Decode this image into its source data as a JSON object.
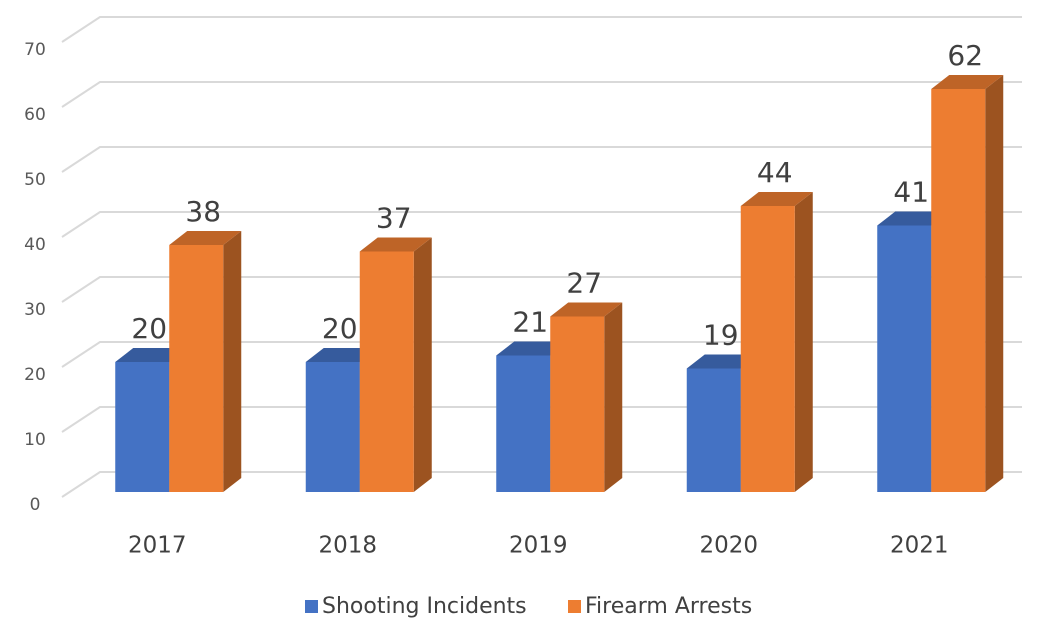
{
  "chart_data": {
    "type": "bar3d",
    "categories": [
      "2017",
      "2018",
      "2019",
      "2020",
      "2021"
    ],
    "series": [
      {
        "name": "Shooting Incidents",
        "color": "#4472c4",
        "values": [
          20,
          20,
          21,
          19,
          41
        ]
      },
      {
        "name": "Firearm Arrests",
        "color": "#ed7d31",
        "values": [
          38,
          37,
          27,
          44,
          62
        ]
      }
    ],
    "ylim": [
      0,
      70
    ],
    "yticks": [
      0,
      10,
      20,
      30,
      40,
      50,
      60,
      70
    ],
    "grid": true,
    "legend": "bottom"
  }
}
